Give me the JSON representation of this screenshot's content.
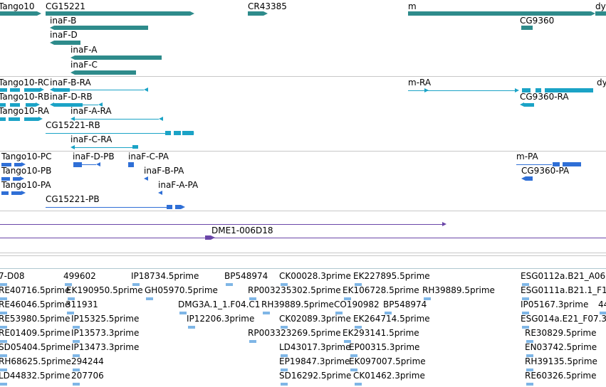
{
  "colors": {
    "gene": "#2e8b8b",
    "transcript": "#1ba3c6",
    "protein": "#2f6fd6",
    "clone": "#6a46a8",
    "est": "#7fb6e6",
    "separator": "#c8c8c8"
  },
  "tracks": {
    "genes": {
      "labels": [
        "Tango10",
        "CG15221",
        "inaF-B",
        "inaF-D",
        "inaF-A",
        "inaF-C",
        "CR43385",
        "m",
        "CG9360",
        "dy"
      ]
    },
    "transcripts": {
      "labels": [
        "Tango10-RC",
        "inaF-B-RA",
        "Tango10-RB",
        "inaF-D-RB",
        "Tango10-RA",
        "inaF-A-RA",
        "CG15221-RB",
        "inaF-C-RA",
        "m-RA",
        "CG9360-RA",
        "dy"
      ]
    },
    "proteins": {
      "labels": [
        "Tango10-PC",
        "inaF-D-PB",
        "inaF-C-PA",
        "Tango10-PB",
        "inaF-B-PA",
        "Tango10-PA",
        "inaF-A-PA",
        "CG15221-PB",
        "m-PA",
        "CG9360-PA"
      ]
    },
    "clones": {
      "labels": [
        "DME1-006D18"
      ]
    },
    "ests": {
      "labels": [
        "7-D08",
        "499602",
        "IP18734.5prime",
        "BP548974",
        "CK00028.3prime",
        "EK227895.5prime",
        "ESG0112a.B21_A06.",
        "RE40716.5prime",
        "EK190950.5prime",
        "GH05970.5prime",
        "RP003235302.5prime",
        "EK106728.5prime",
        "RH39889.5prime",
        "ESG0111a.B21.1_F1",
        "RE46046.5prime",
        "311931",
        "DMG3A.1_1.F04.C1",
        "RH39889.5prime",
        "CO190982",
        "BP548974",
        "IP05167.3prime",
        "44",
        "RE53980.5prime",
        "IP15325.5prime",
        "IP12206.3prime",
        "CK02089.3prime",
        "EK264714.5prime",
        "ESG014a.E21_F07.3",
        "RE01409.5prime",
        "IP13573.3prime",
        "RP003323269.5prime",
        "EK293141.5prime",
        "RE30829.5prime",
        "SD05404.5prime",
        "IP13473.3prime",
        "LD43017.3prime",
        "EP00315.3prime",
        "EN03742.5prime",
        "RH68625.5prime",
        "294244",
        "EP19847.3prime",
        "EK097007.5prime",
        "RH39135.5prime",
        "LD44832.5prime",
        "207706",
        "SD16292.5prime",
        "CK01462.3prime",
        "RE60326.5prime"
      ]
    }
  }
}
